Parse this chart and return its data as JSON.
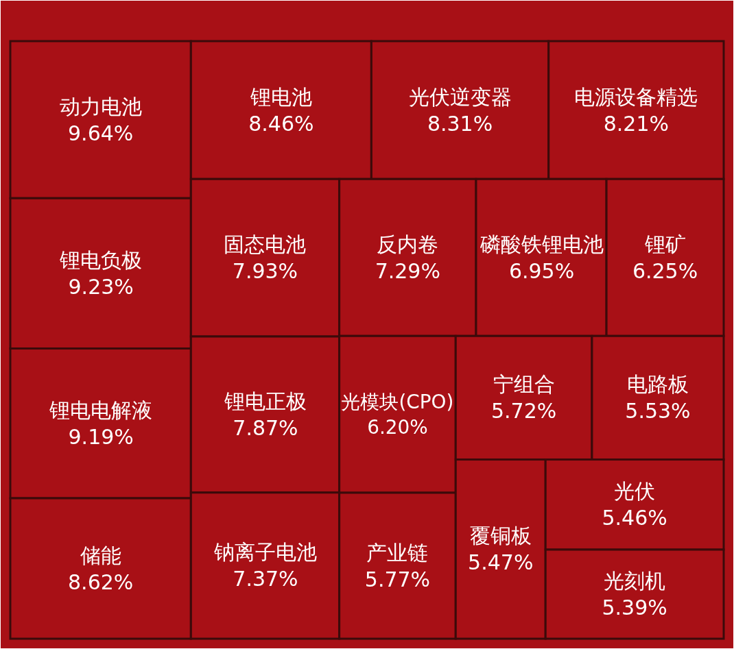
{
  "chart_data": {
    "type": "other",
    "categories": [
      "动力电池",
      "锂电负极",
      "锂电电解液",
      "储能",
      "锂电池",
      "光伏逆变器",
      "电源设备精选",
      "固态电池",
      "锂电正极",
      "钠离子电池",
      "反内卷",
      "磷酸铁锂电池",
      "锂矿",
      "光模块(CPO)",
      "产业链",
      "宁组合",
      "电路板",
      "覆铜板",
      "光伏",
      "光刻机"
    ],
    "values": [
      9.64,
      9.23,
      9.19,
      8.62,
      8.46,
      8.31,
      8.21,
      7.93,
      7.87,
      7.37,
      7.29,
      6.95,
      6.25,
      6.2,
      5.77,
      5.72,
      5.53,
      5.47,
      5.46,
      5.39
    ],
    "value_labels": [
      "9.64%",
      "9.23%",
      "9.19%",
      "8.62%",
      "8.46%",
      "8.31%",
      "8.21%",
      "7.93%",
      "7.87%",
      "7.37%",
      "7.29%",
      "6.95%",
      "6.25%",
      "6.20%",
      "5.77%",
      "5.72%",
      "5.53%",
      "5.47%",
      "5.46%",
      "5.39%"
    ],
    "color": "#a81016"
  }
}
